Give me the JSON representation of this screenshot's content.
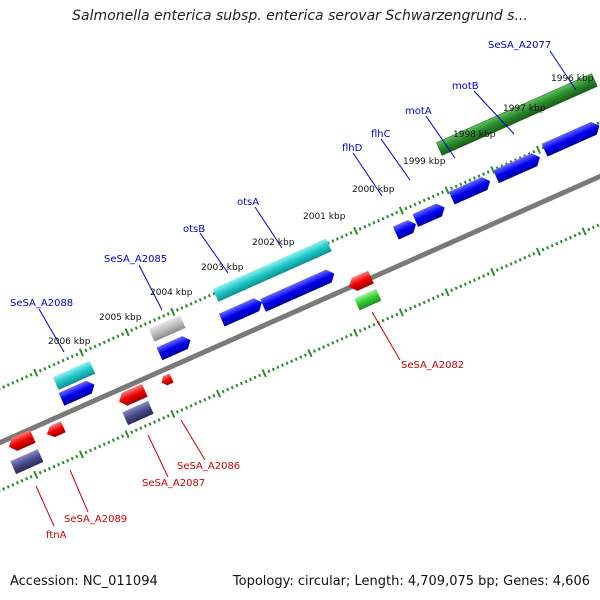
{
  "title": "Salmonella enterica subsp. enterica serovar Schwarzengrund s...",
  "footer": {
    "accession": "Accession: NC_011094",
    "summary": "Topology: circular; Length: 4,709,075 bp; Genes: 4,606"
  },
  "colors": {
    "backbone": "#808080",
    "tick": "#2e8b2e",
    "blue_gene": "#0000ee",
    "cyan_gene": "#1fc8c8",
    "green_gene": "#2a8a2a",
    "light_green_gene": "#33cc33",
    "red_gene": "#ee0000",
    "purple_gene": "#4a4a8a",
    "gray_gene": "#b8b8b8",
    "forward_label": "#0000cc",
    "reverse_label": "#cc0000"
  },
  "kbp_labels": [
    "1996 kbp",
    "1997 kbp",
    "1998 kbp",
    "1999 kbp",
    "2000 kbp",
    "2001 kbp",
    "2002 kbp",
    "2003 kbp",
    "2004 kbp",
    "2005 kbp",
    "2006 kbp"
  ],
  "forward_labels": [
    "SeSA_A2077",
    "motB",
    "motA",
    "flhC",
    "flhD",
    "otsA",
    "otsB",
    "SeSA_A2085",
    "SeSA_A2088"
  ],
  "reverse_labels": [
    "SeSA_A2082",
    "SeSA_A2086",
    "SeSA_A2087",
    "SeSA_A2089",
    "ftnA"
  ]
}
